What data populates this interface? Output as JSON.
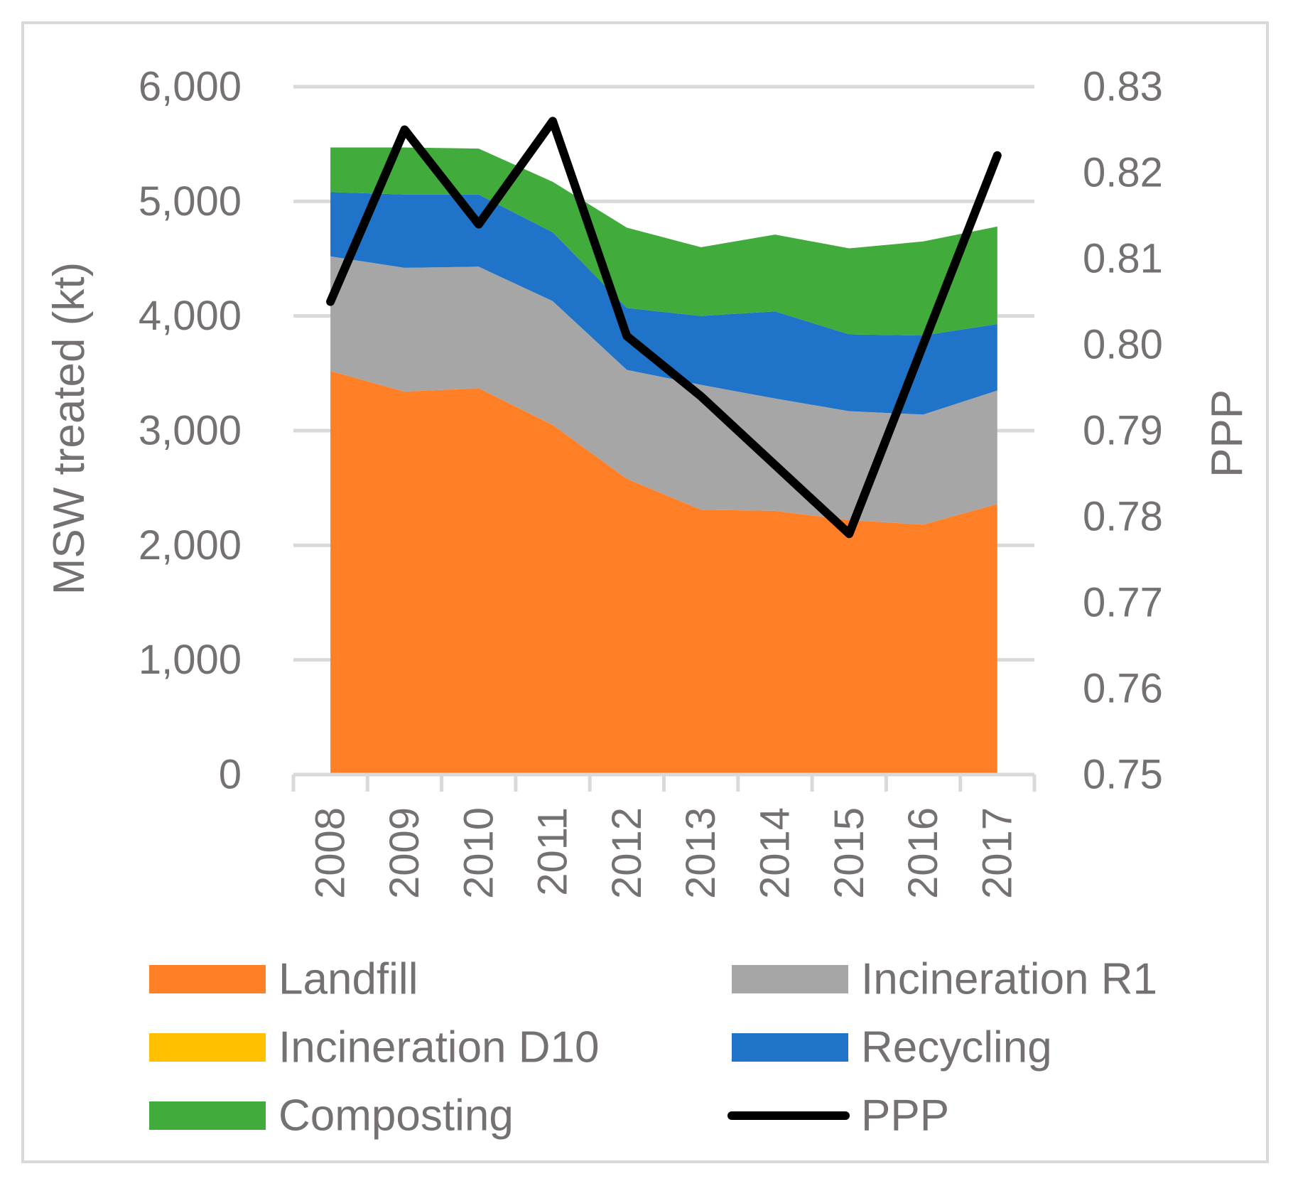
{
  "chart_data": {
    "type": "area",
    "categories": [
      "2008",
      "2009",
      "2010",
      "2011",
      "2012",
      "2013",
      "2014",
      "2015",
      "2016",
      "2017"
    ],
    "ylabel": "MSW treated (kt)",
    "y2label": "PPP",
    "ylim": [
      0,
      6000
    ],
    "y2lim": [
      0.75,
      0.83
    ],
    "yticks": [
      "0",
      "1,000",
      "2,000",
      "3,000",
      "4,000",
      "5,000",
      "6,000"
    ],
    "y2ticks": [
      "0.75",
      "0.76",
      "0.77",
      "0.78",
      "0.79",
      "0.80",
      "0.81",
      "0.82",
      "0.83"
    ],
    "grid": true,
    "stacked_series": [
      {
        "name": "Landfill",
        "color": "#ff7f27",
        "values": [
          3520,
          3340,
          3370,
          3050,
          2580,
          2310,
          2300,
          2220,
          2180,
          2360
        ]
      },
      {
        "name": "Incineration R1",
        "color": "#a6a6a6",
        "values": [
          1000,
          1080,
          1060,
          1080,
          950,
          1090,
          980,
          950,
          960,
          990
        ]
      },
      {
        "name": "Incineration D10",
        "color": "#ffc000",
        "values": [
          0,
          0,
          0,
          0,
          0,
          0,
          0,
          0,
          0,
          0
        ]
      },
      {
        "name": "Recycling",
        "color": "#1f73c8",
        "values": [
          560,
          640,
          630,
          600,
          540,
          600,
          760,
          670,
          690,
          580
        ]
      },
      {
        "name": "Composting",
        "color": "#41ac3c",
        "values": [
          390,
          410,
          400,
          440,
          700,
          600,
          670,
          750,
          820,
          850
        ]
      }
    ],
    "line_series": {
      "name": "PPP",
      "color": "#000000",
      "axis": "secondary",
      "values": [
        0.805,
        0.825,
        0.814,
        0.826,
        0.801,
        0.794,
        0.786,
        0.778,
        0.8,
        0.822
      ]
    },
    "legend": [
      {
        "label": "Landfill",
        "color": "#ff7f27",
        "kind": "swatch"
      },
      {
        "label": "Incineration R1",
        "color": "#a6a6a6",
        "kind": "swatch"
      },
      {
        "label": "Incineration D10",
        "color": "#ffc000",
        "kind": "swatch"
      },
      {
        "label": "Recycling",
        "color": "#1f73c8",
        "kind": "swatch"
      },
      {
        "label": "Composting",
        "color": "#41ac3c",
        "kind": "swatch"
      },
      {
        "label": "PPP",
        "color": "#000000",
        "kind": "line"
      }
    ],
    "legend_position": "bottom"
  }
}
